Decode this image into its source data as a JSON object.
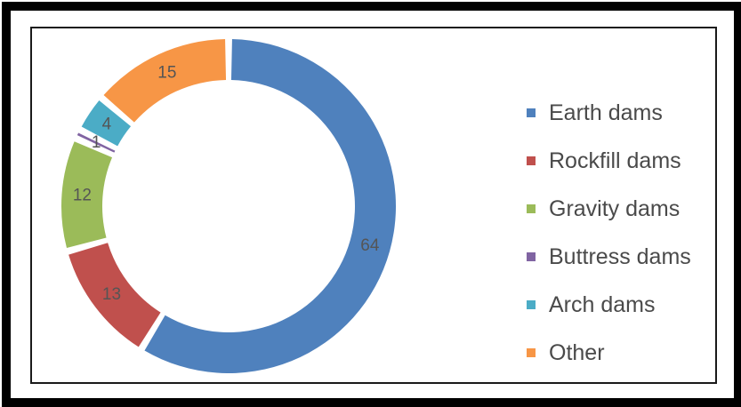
{
  "chart_data": {
    "type": "pie",
    "variant": "donut",
    "categories": [
      "Earth dams",
      "Rockfill dams",
      "Gravity dams",
      "Buttress dams",
      "Arch dams",
      "Other"
    ],
    "values": [
      64,
      13,
      12,
      1,
      4,
      15
    ],
    "data_labels": [
      "64",
      "13",
      "12",
      "1",
      "4",
      "15"
    ],
    "colors": [
      "#4f81bd",
      "#c0504d",
      "#9bbb59",
      "#8064a2",
      "#4bacc6",
      "#f79646"
    ],
    "legend_position": "right",
    "title": ""
  }
}
